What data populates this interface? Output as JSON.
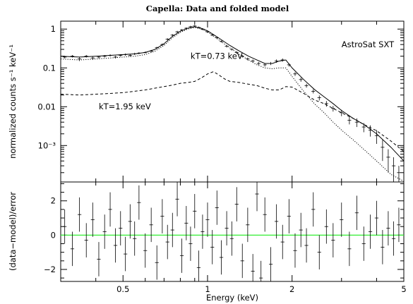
{
  "chart_data": [
    {
      "type": "line",
      "title": "Capella: Data and folded model",
      "xlabel": "",
      "ylabel": "normalized counts s⁻¹ keV⁻¹",
      "xscale": "log",
      "yscale": "log",
      "xlim": [
        0.3,
        5.0
      ],
      "ylim": [
        0.000115,
        1.6
      ],
      "grid": false,
      "y_ticks": [
        {
          "value": 1,
          "label": "1"
        },
        {
          "value": 0.1,
          "label": "0.1"
        },
        {
          "value": 0.01,
          "label": "0.01"
        },
        {
          "value": 0.001,
          "label": "10⁻³"
        }
      ],
      "annotations": [
        {
          "text": "AstroSat SXT",
          "x": 3.0,
          "y": 0.34
        },
        {
          "text": "kT=0.73 keV",
          "x": 0.87,
          "y": 0.17
        },
        {
          "text": "kT=1.95 keV",
          "x": 0.41,
          "y": 0.0085
        }
      ],
      "series": [
        {
          "name": "",
          "style": "data-crosses",
          "x": [
            0.31,
            0.33,
            0.35,
            0.37,
            0.39,
            0.41,
            0.43,
            0.45,
            0.47,
            0.49,
            0.51,
            0.53,
            0.55,
            0.57,
            0.6,
            0.63,
            0.66,
            0.69,
            0.72,
            0.75,
            0.78,
            0.81,
            0.84,
            0.87,
            0.9,
            0.93,
            0.96,
            1.0,
            1.04,
            1.08,
            1.12,
            1.17,
            1.22,
            1.27,
            1.33,
            1.39,
            1.45,
            1.52,
            1.6,
            1.68,
            1.76,
            1.85,
            1.95,
            2.05,
            2.15,
            2.25,
            2.38,
            2.5,
            2.65,
            2.8,
            3.0,
            3.2,
            3.4,
            3.6,
            3.8,
            4.0,
            4.2,
            4.4,
            4.6,
            4.8
          ],
          "y": [
            0.19,
            0.2,
            0.17,
            0.2,
            0.18,
            0.19,
            0.2,
            0.21,
            0.19,
            0.21,
            0.22,
            0.21,
            0.23,
            0.24,
            0.25,
            0.27,
            0.33,
            0.4,
            0.55,
            0.7,
            0.85,
            0.95,
            1.05,
            1.15,
            1.2,
            1.1,
            1.0,
            0.85,
            0.7,
            0.6,
            0.48,
            0.36,
            0.3,
            0.25,
            0.2,
            0.17,
            0.15,
            0.13,
            0.12,
            0.13,
            0.15,
            0.16,
            0.12,
            0.07,
            0.05,
            0.035,
            0.025,
            0.017,
            0.012,
            0.009,
            0.007,
            0.0045,
            0.004,
            0.003,
            0.0025,
            0.0018,
            0.0009,
            0.0005,
            0.0003,
            0.0002
          ],
          "yerr": [
            0.015,
            0.015,
            0.02,
            0.015,
            0.02,
            0.015,
            0.015,
            0.015,
            0.015,
            0.015,
            0.015,
            0.015,
            0.015,
            0.015,
            0.015,
            0.02,
            0.02,
            0.025,
            0.03,
            0.04,
            0.05,
            0.05,
            0.06,
            0.06,
            0.07,
            0.06,
            0.06,
            0.05,
            0.04,
            0.04,
            0.03,
            0.025,
            0.02,
            0.02,
            0.015,
            0.015,
            0.015,
            0.012,
            0.012,
            0.012,
            0.015,
            0.015,
            0.012,
            0.008,
            0.006,
            0.004,
            0.003,
            0.0025,
            0.002,
            0.0015,
            0.0013,
            0.001,
            0.001,
            0.0008,
            0.0008,
            0.0007,
            0.0005,
            0.0003,
            0.0002,
            0.0001
          ]
        },
        {
          "name": "",
          "style": "solid",
          "x": [
            0.3,
            0.35,
            0.4,
            0.45,
            0.5,
            0.55,
            0.6,
            0.65,
            0.7,
            0.75,
            0.8,
            0.85,
            0.9,
            0.95,
            1.0,
            1.05,
            1.1,
            1.2,
            1.3,
            1.4,
            1.5,
            1.6,
            1.7,
            1.8,
            1.9,
            2.0,
            2.2,
            2.4,
            2.6,
            2.8,
            3.0,
            3.3,
            3.6,
            4.0,
            4.5,
            5.0
          ],
          "y": [
            0.2,
            0.19,
            0.2,
            0.21,
            0.22,
            0.23,
            0.25,
            0.3,
            0.42,
            0.65,
            0.88,
            1.05,
            1.15,
            1.05,
            0.9,
            0.72,
            0.58,
            0.38,
            0.27,
            0.2,
            0.16,
            0.13,
            0.13,
            0.15,
            0.16,
            0.1,
            0.05,
            0.028,
            0.018,
            0.012,
            0.008,
            0.005,
            0.0035,
            0.002,
            0.0009,
            0.0004
          ]
        },
        {
          "name": "",
          "style": "dotted",
          "x": [
            0.3,
            0.35,
            0.4,
            0.45,
            0.5,
            0.55,
            0.6,
            0.65,
            0.7,
            0.75,
            0.8,
            0.85,
            0.9,
            0.95,
            1.0,
            1.05,
            1.1,
            1.2,
            1.3,
            1.4,
            1.5,
            1.6,
            1.7,
            1.8,
            1.9,
            2.0,
            2.2,
            2.4,
            2.6,
            2.8,
            3.0,
            3.3,
            3.6,
            4.0,
            4.5,
            5.0
          ],
          "y": [
            0.17,
            0.16,
            0.17,
            0.18,
            0.19,
            0.2,
            0.22,
            0.27,
            0.38,
            0.6,
            0.82,
            1.0,
            1.1,
            1.0,
            0.85,
            0.66,
            0.52,
            0.33,
            0.22,
            0.16,
            0.12,
            0.1,
            0.095,
            0.1,
            0.1,
            0.06,
            0.025,
            0.012,
            0.007,
            0.004,
            0.0025,
            0.0014,
            0.0008,
            0.0004,
            0.00018,
            0.00012
          ]
        },
        {
          "name": "",
          "style": "dashed",
          "x": [
            0.3,
            0.35,
            0.4,
            0.45,
            0.5,
            0.55,
            0.6,
            0.65,
            0.7,
            0.75,
            0.8,
            0.85,
            0.9,
            0.95,
            1.0,
            1.05,
            1.1,
            1.15,
            1.2,
            1.3,
            1.4,
            1.5,
            1.6,
            1.7,
            1.8,
            1.9,
            2.0,
            2.2,
            2.4,
            2.6,
            2.8,
            3.0,
            3.3,
            3.6,
            4.0,
            4.5,
            5.0
          ],
          "y": [
            0.021,
            0.02,
            0.021,
            0.022,
            0.023,
            0.025,
            0.027,
            0.03,
            0.033,
            0.036,
            0.04,
            0.042,
            0.045,
            0.055,
            0.07,
            0.08,
            0.065,
            0.052,
            0.045,
            0.042,
            0.038,
            0.035,
            0.03,
            0.027,
            0.027,
            0.033,
            0.032,
            0.022,
            0.015,
            0.012,
            0.009,
            0.007,
            0.005,
            0.0035,
            0.0024,
            0.0013,
            0.0007
          ]
        }
      ]
    },
    {
      "type": "scatter",
      "title": "",
      "xlabel": "Energy (keV)",
      "ylabel": "(data−model)/error",
      "xscale": "log",
      "xlim": [
        0.3,
        5.0
      ],
      "ylim": [
        -2.7,
        3.1
      ],
      "grid": false,
      "x_ticks": [
        {
          "value": 0.5,
          "label": "0.5"
        },
        {
          "value": 1,
          "label": "1"
        },
        {
          "value": 2,
          "label": "2"
        },
        {
          "value": 5,
          "label": "5"
        }
      ],
      "y_ticks": [
        {
          "value": 2,
          "label": "2"
        },
        {
          "value": 0,
          "label": "0"
        },
        {
          "value": -2,
          "label": "−2"
        }
      ],
      "zero_line": {
        "value": 0,
        "color": "#33ee33"
      },
      "series": [
        {
          "name": "",
          "style": "data-crosses",
          "x": [
            0.31,
            0.33,
            0.35,
            0.37,
            0.39,
            0.41,
            0.43,
            0.45,
            0.47,
            0.49,
            0.51,
            0.53,
            0.55,
            0.57,
            0.6,
            0.63,
            0.66,
            0.69,
            0.72,
            0.75,
            0.78,
            0.81,
            0.84,
            0.87,
            0.9,
            0.93,
            0.96,
            1.0,
            1.04,
            1.08,
            1.12,
            1.17,
            1.22,
            1.27,
            1.33,
            1.39,
            1.45,
            1.5,
            1.55,
            1.6,
            1.68,
            1.76,
            1.85,
            1.95,
            2.05,
            2.15,
            2.25,
            2.38,
            2.5,
            2.65,
            2.8,
            3.0,
            3.2,
            3.4,
            3.6,
            3.8,
            4.0,
            4.2,
            4.4,
            4.6,
            4.8
          ],
          "y": [
            0.5,
            -0.8,
            1.2,
            -0.3,
            0.9,
            -1.4,
            0.2,
            1.5,
            -0.6,
            0.4,
            -1.1,
            0.8,
            -0.2,
            1.9,
            -0.9,
            0.6,
            -1.6,
            1.1,
            -0.4,
            0.3,
            2.1,
            -1.2,
            0.7,
            -0.5,
            1.4,
            -1.9,
            0.2,
            0.9,
            -0.7,
            1.6,
            -1.3,
            0.4,
            -0.2,
            1.8,
            -1.5,
            0.6,
            -2.1,
            2.4,
            -2.5,
            1.2,
            -1.7,
            0.8,
            -0.4,
            1.1,
            -0.9,
            0.3,
            -0.6,
            1.5,
            -1.0,
            0.5,
            -0.3,
            0.9,
            -0.8,
            1.3,
            -0.5,
            0.2,
            1.0,
            -0.7,
            0.4,
            -0.2,
            0.6
          ],
          "yerr": [
            1,
            1,
            1,
            1,
            1,
            1,
            1,
            1,
            1,
            1,
            1,
            1,
            1,
            1,
            1,
            1,
            1,
            1,
            1,
            1,
            1,
            1,
            1,
            1,
            1,
            1,
            1,
            1,
            1,
            1,
            1,
            1,
            1,
            1,
            1,
            1,
            1,
            1,
            1,
            1,
            1,
            1,
            1,
            1,
            1,
            1,
            1,
            1,
            1,
            1,
            1,
            1,
            1,
            1,
            1,
            1,
            1,
            1,
            1,
            1,
            1
          ]
        }
      ]
    }
  ]
}
